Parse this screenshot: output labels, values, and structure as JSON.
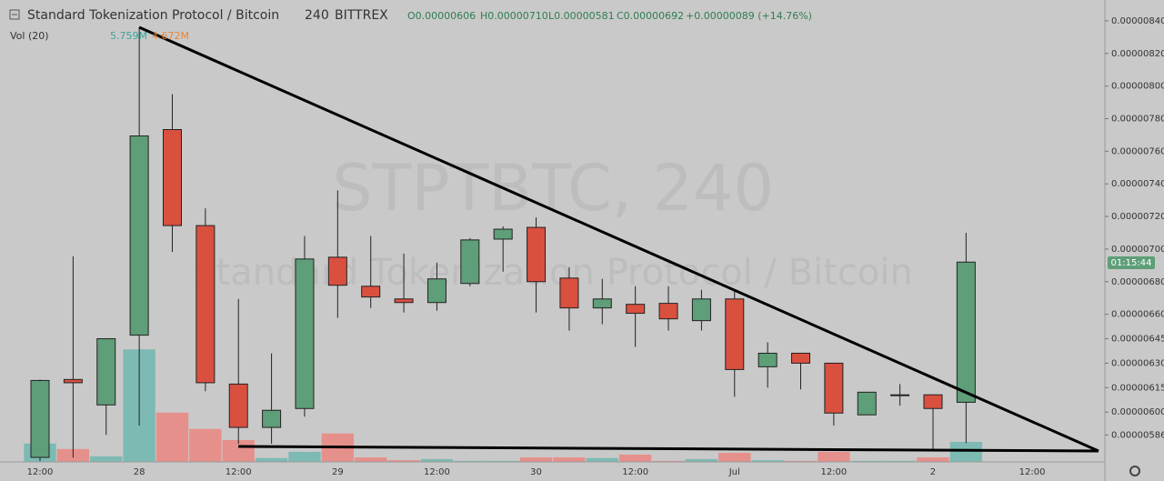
{
  "header": {
    "symbol": "Standard Tokenization Protocol / Bitcoin",
    "interval": "240",
    "exchange": "BITTREX",
    "open": "O0.00000606",
    "high": "H0.00000710",
    "low": "L0.00000581",
    "close": "C0.00000692",
    "change": "+0.00000089 (+14.76%)",
    "volume_label": "Vol (20)",
    "volume_value": "5.759M",
    "volume_ma": "4.672M"
  },
  "watermark": {
    "line1": "STPTBTC, 240",
    "line2": "Standard Tokenization Protocol / Bitcoin"
  },
  "countdown": "01:15:44",
  "chart_data": {
    "type": "candlestick",
    "categories": [
      "12:00",
      null,
      null,
      "28",
      null,
      null,
      "12:00",
      null,
      null,
      "29",
      null,
      null,
      "12:00",
      null,
      null,
      "30",
      null,
      null,
      "12:00",
      null,
      null,
      "Jul",
      null,
      null,
      "12:00",
      null,
      null,
      "2",
      null,
      null,
      "12:00"
    ],
    "open": [
      5.722e-06,
      6.2e-06,
      6.044e-06,
      6.472e-06,
      7.733e-06,
      7.144e-06,
      6.172e-06,
      5.906e-06,
      6.022e-06,
      6.95e-06,
      6.772e-06,
      6.694e-06,
      6.672e-06,
      6.789e-06,
      7.061e-06,
      7.133e-06,
      6.822e-06,
      6.639e-06,
      6.661e-06,
      6.667e-06,
      6.561e-06,
      6.694e-06,
      6.278e-06,
      6.361e-06,
      6.3e-06,
      5.983e-06,
      6.106e-06,
      6.106e-06,
      6.06e-06,
      null,
      null
    ],
    "high": [
      6.2e-06,
      6.956e-06,
      6.45e-06,
      8.36e-06,
      7.95e-06,
      7.25e-06,
      6.694e-06,
      6.36e-06,
      7.08e-06,
      7.36e-06,
      7.08e-06,
      6.972e-06,
      6.917e-06,
      7.067e-06,
      7.139e-06,
      7.194e-06,
      6.889e-06,
      6.817e-06,
      6.772e-06,
      6.772e-06,
      6.75e-06,
      6.75e-06,
      6.428e-06,
      6.361e-06,
      6.3e-06,
      6.122e-06,
      6.172e-06,
      6.106e-06,
      7.1e-06,
      null,
      null
    ],
    "low": [
      5.7e-06,
      5.72e-06,
      5.86e-06,
      5.917e-06,
      6.983e-06,
      6.128e-06,
      5.806e-06,
      5.806e-06,
      5.972e-06,
      6.578e-06,
      6.639e-06,
      6.611e-06,
      6.622e-06,
      6.772e-06,
      6.861e-06,
      6.611e-06,
      6.5e-06,
      6.539e-06,
      6.4e-06,
      6.5e-06,
      6.5e-06,
      6.094e-06,
      6.15e-06,
      6.139e-06,
      5.917e-06,
      5.983e-06,
      6.039e-06,
      5.76e-06,
      5.81e-06,
      null,
      null
    ],
    "close": [
      6.194e-06,
      6.18e-06,
      6.45e-06,
      7.694e-06,
      7.144e-06,
      6.18e-06,
      5.906e-06,
      6.011e-06,
      6.939e-06,
      6.778e-06,
      6.706e-06,
      6.672e-06,
      6.817e-06,
      7.056e-06,
      7.122e-06,
      6.8e-06,
      6.639e-06,
      6.694e-06,
      6.606e-06,
      6.572e-06,
      6.694e-06,
      6.261e-06,
      6.361e-06,
      6.3e-06,
      5.994e-06,
      6.122e-06,
      6.106e-06,
      6.022e-06,
      6.92e-06,
      null,
      null
    ],
    "volume": [
      5.3,
      3.7,
      1.6,
      32.4,
      14.2,
      9.5,
      6.3,
      1.1,
      2.9,
      8.2,
      1.3,
      0.5,
      0.8,
      0.3,
      0.3,
      1.3,
      1.3,
      1.1,
      2.1,
      0.3,
      0.8,
      2.6,
      0.5,
      0.3,
      2.9,
      0.3,
      0.3,
      1.3,
      5.759,
      null,
      null
    ],
    "up_color": "#5e9e78",
    "down_color": "#d9503f",
    "volume_up_color": "#7dbab4",
    "volume_down_color": "#e6908c",
    "ylim": [
      5.6944e-06,
      8.5278e-06
    ],
    "y2lim": [
      0,
      133
    ],
    "yticks": [
      {
        "value": 8.4e-06,
        "label": "0.00000840"
      },
      {
        "value": 8.2e-06,
        "label": "0.00000820"
      },
      {
        "value": 8e-06,
        "label": "0.00000800"
      },
      {
        "value": 7.8e-06,
        "label": "0.00000780"
      },
      {
        "value": 7.6e-06,
        "label": "0.00000760"
      },
      {
        "value": 7.4e-06,
        "label": "0.00000740"
      },
      {
        "value": 7.2e-06,
        "label": "0.00000720"
      },
      {
        "value": 7e-06,
        "label": "0.00000700"
      },
      {
        "value": 6.8e-06,
        "label": "0.00000680"
      },
      {
        "value": 6.6e-06,
        "label": "0.00000660"
      },
      {
        "value": 6.45e-06,
        "label": "0.00000645"
      },
      {
        "value": 6.3e-06,
        "label": "0.00000630"
      },
      {
        "value": 6.15e-06,
        "label": "0.00000615"
      },
      {
        "value": 6e-06,
        "label": "0.00000600"
      },
      {
        "value": 5.86e-06,
        "label": "0.00000586"
      }
    ],
    "grid": false
  }
}
